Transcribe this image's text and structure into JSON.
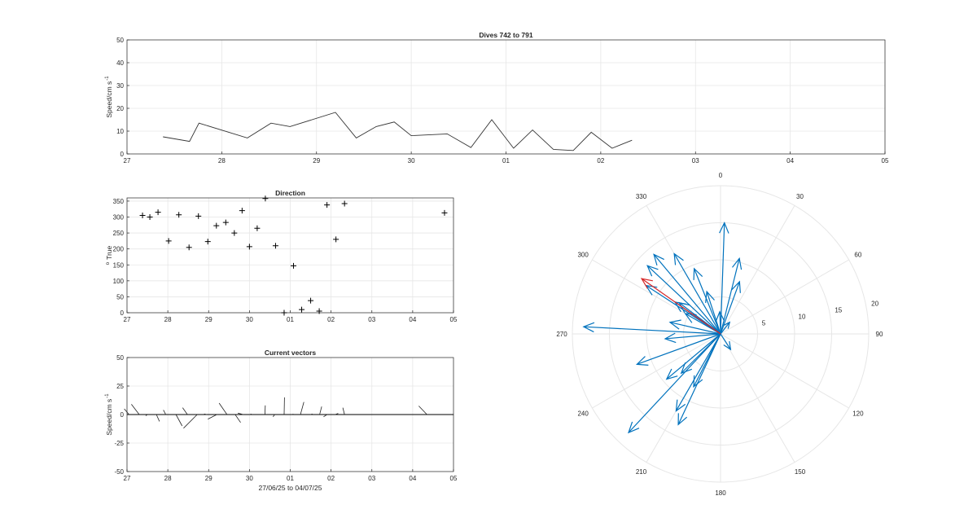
{
  "colors": {
    "axis": "#262626",
    "grid": "#e6e6e6",
    "line": "#000000",
    "vector": "#0072bd",
    "highlight": "#d62728"
  },
  "chart_data": [
    {
      "id": "speed",
      "type": "line",
      "title": "Dives 742 to 791",
      "xlabel": "",
      "ylabel": "Speed/cm s",
      "ylabel_sup": "-1",
      "xlim": [
        27,
        35
      ],
      "ylim": [
        0,
        50
      ],
      "xticks": [
        27,
        28,
        29,
        30,
        31,
        32,
        33,
        34,
        35
      ],
      "xticklabels": [
        "27",
        "28",
        "29",
        "30",
        "01",
        "02",
        "03",
        "04",
        "05"
      ],
      "yticks": [
        0,
        10,
        20,
        30,
        40,
        50
      ],
      "x": [
        27.38,
        27.66,
        27.76,
        28.27,
        28.52,
        28.72,
        29.2,
        29.42,
        29.63,
        29.82,
        30.0,
        30.38,
        30.63,
        30.85,
        31.08,
        31.28,
        31.5,
        31.71,
        31.9,
        32.12,
        32.33
      ],
      "y": [
        7.5,
        5.5,
        13.5,
        7,
        13.5,
        12,
        18.2,
        7,
        12,
        14,
        8,
        8.8,
        2.8,
        15,
        2.5,
        10.5,
        2,
        1.5,
        9.5,
        2.5,
        6
      ]
    },
    {
      "id": "direction",
      "type": "scatter",
      "title": "Direction",
      "xlabel": "",
      "ylabel": "True",
      "ylabel_sup": "o",
      "xlim": [
        27,
        35
      ],
      "ylim": [
        0,
        360
      ],
      "xticks": [
        27,
        28,
        29,
        30,
        31,
        32,
        33,
        34,
        35
      ],
      "xticklabels": [
        "27",
        "28",
        "29",
        "30",
        "01",
        "02",
        "03",
        "04",
        "05"
      ],
      "yticks": [
        0,
        50,
        100,
        150,
        200,
        250,
        300,
        350
      ],
      "x": [
        27.38,
        27.56,
        27.76,
        28.02,
        28.27,
        28.52,
        28.75,
        28.98,
        29.19,
        29.42,
        29.63,
        29.82,
        30.0,
        30.19,
        30.39,
        30.64,
        30.85,
        31.08,
        31.28,
        31.5,
        31.71,
        31.9,
        32.12,
        32.33,
        34.78
      ],
      "y": [
        305,
        300,
        315,
        225,
        307,
        205,
        303,
        223,
        273,
        283,
        250,
        320,
        207,
        265,
        358,
        210,
        0,
        147,
        10,
        38,
        5,
        338,
        230,
        342,
        313
      ]
    },
    {
      "id": "vectors",
      "type": "line",
      "title": "Current vectors",
      "xlabel": "27/06/25 to 04/07/25",
      "ylabel": "Speed/cm s",
      "ylabel_sup": "-1",
      "xlim": [
        27,
        35
      ],
      "ylim": [
        -50,
        50
      ],
      "xticks": [
        27,
        28,
        29,
        30,
        31,
        32,
        33,
        34,
        35
      ],
      "xticklabels": [
        "27",
        "28",
        "29",
        "30",
        "01",
        "02",
        "03",
        "04",
        "05"
      ],
      "yticks": [
        -50,
        -25,
        0,
        25,
        50
      ],
      "time": [
        27.05,
        27.3,
        27.5,
        27.72,
        27.95,
        28.2,
        28.48,
        28.72,
        28.95,
        29.2,
        29.45,
        29.65,
        29.85,
        30.0,
        30.38,
        30.62,
        30.85,
        31.05,
        31.25,
        31.5,
        31.72,
        31.9,
        32.1,
        32.33,
        34.35
      ],
      "u": [
        -1.4,
        -2.3,
        -0.5,
        0.9,
        -0.7,
        1.8,
        -1.4,
        -4,
        -0.7,
        -2.6,
        -2.3,
        1.6,
        -1.6,
        0.6,
        0.1,
        -0.5,
        0.1,
        0.3,
        1,
        0.5,
        0.6,
        -1,
        0.9,
        -0.5,
        -2.4
      ],
      "v": [
        5,
        9,
        -1,
        -6,
        4,
        -10,
        6,
        -12,
        0.5,
        -4,
        10,
        -7,
        1.2,
        0.4,
        8,
        -2,
        15,
        0.5,
        11,
        0.5,
        7,
        -2,
        1,
        6,
        7.5
      ]
    },
    {
      "id": "polar",
      "type": "scatter",
      "title": "",
      "theta_ticks": [
        0,
        30,
        60,
        90,
        120,
        150,
        180,
        210,
        240,
        270,
        300,
        330
      ],
      "r_ticks": [
        5,
        10,
        15,
        20
      ],
      "rlim": [
        0,
        20
      ],
      "vectors": [
        {
          "dir": 2,
          "speed": 15
        },
        {
          "dir": 14,
          "speed": 10.5
        },
        {
          "dir": 20,
          "speed": 7.5
        },
        {
          "dir": 38,
          "speed": 2
        },
        {
          "dir": 147,
          "speed": 2.5
        },
        {
          "dir": 205,
          "speed": 13.5
        },
        {
          "dir": 207,
          "speed": 8
        },
        {
          "dir": 210,
          "speed": 12
        },
        {
          "dir": 223,
          "speed": 18.2
        },
        {
          "dir": 225,
          "speed": 7.5
        },
        {
          "dir": 230,
          "speed": 9.5
        },
        {
          "dir": 250,
          "speed": 12
        },
        {
          "dir": 265,
          "speed": 7.5
        },
        {
          "dir": 273,
          "speed": 18.5
        },
        {
          "dir": 283,
          "speed": 7
        },
        {
          "dir": 300,
          "speed": 5.5
        },
        {
          "dir": 303,
          "speed": 12
        },
        {
          "dir": 305,
          "speed": 7.5
        },
        {
          "dir": 307,
          "speed": 7
        },
        {
          "dir": 313,
          "speed": 13.5
        },
        {
          "dir": 320,
          "speed": 14
        },
        {
          "dir": 330,
          "speed": 12.5
        },
        {
          "dir": 338,
          "speed": 9.5
        },
        {
          "dir": 342,
          "speed": 6
        },
        {
          "dir": 358,
          "speed": 3
        }
      ],
      "highlight": {
        "dir": 305,
        "speed": 13
      }
    }
  ]
}
